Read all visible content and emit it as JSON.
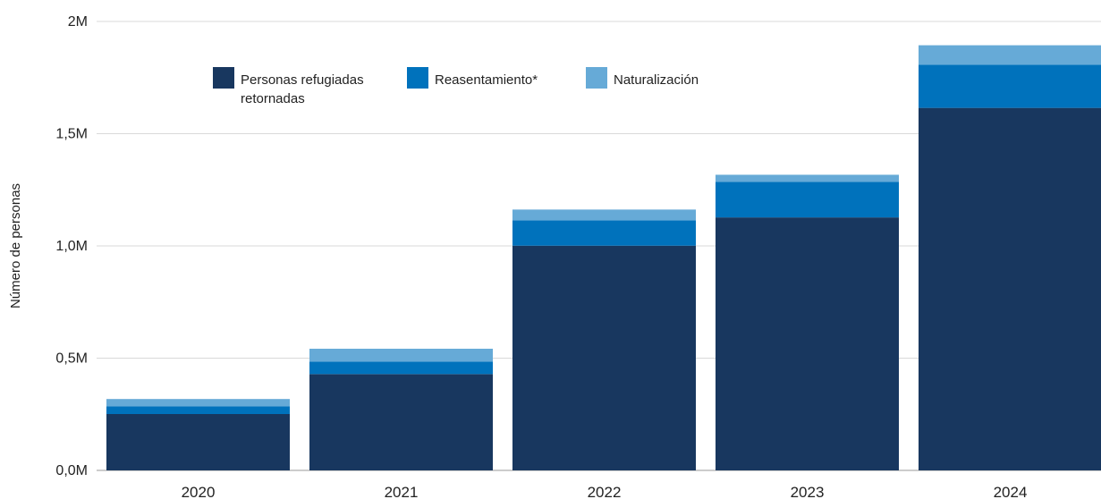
{
  "chart_data": {
    "type": "bar",
    "stacked": true,
    "categories": [
      "2020",
      "2021",
      "2022",
      "2023",
      "2024"
    ],
    "series": [
      {
        "name": "Personas refugiadas retornadas",
        "color": "#18375f",
        "values": [
          251000,
          429000,
          1001000,
          1127000,
          1615000
        ]
      },
      {
        "name": "Reasentamiento*",
        "color": "#0072bc",
        "values": [
          34000,
          56000,
          113000,
          158000,
          192000
        ]
      },
      {
        "name": "Naturalización",
        "color": "#66aad7",
        "values": [
          33000,
          57000,
          48000,
          32000,
          87000
        ]
      }
    ],
    "ylabel": "Número de personas",
    "ylim": [
      0,
      2000000
    ],
    "yticks": [
      {
        "value": 0,
        "label": "0,0M"
      },
      {
        "value": 500000,
        "label": "0,5M"
      },
      {
        "value": 1000000,
        "label": "1,0M"
      },
      {
        "value": 1500000,
        "label": "1,5M"
      },
      {
        "value": 2000000,
        "label": "2M"
      }
    ],
    "grid": true,
    "legend": {
      "placement": "top-left",
      "items": [
        {
          "lines": [
            "Personas refugiadas",
            "retornadas"
          ],
          "color": "#18375f"
        },
        {
          "lines": [
            "Reasentamiento*"
          ],
          "color": "#0072bc"
        },
        {
          "lines": [
            "Naturalización"
          ],
          "color": "#66aad7"
        }
      ]
    }
  }
}
